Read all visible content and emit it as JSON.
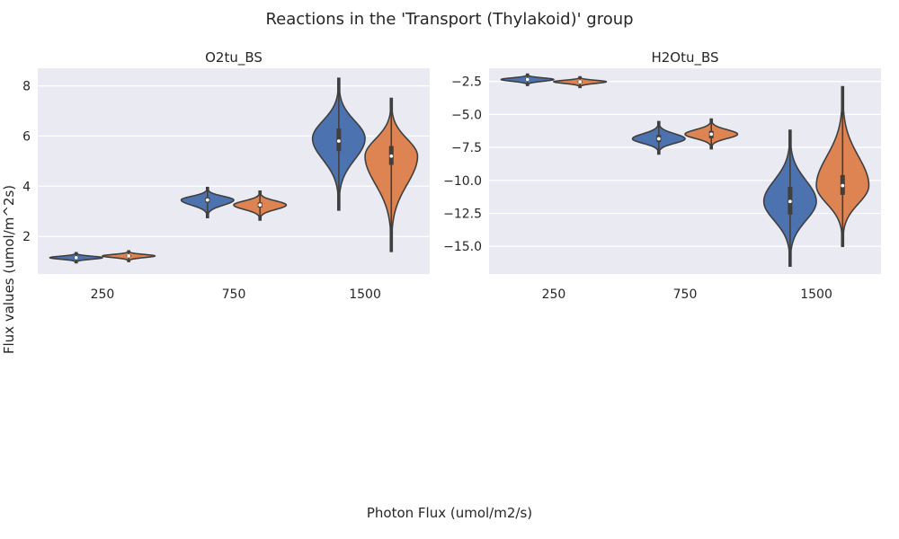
{
  "title": "Reactions in the 'Transport (Thylakoid)' group",
  "xlabel": "Photon Flux (umol/m2/s)",
  "ylabel": "Flux values (umol/m^2s)",
  "colors": {
    "series1": "#4c72b0",
    "series2": "#dd8452",
    "panel_bg": "#eaeaf2",
    "grid": "#ffffff",
    "outline": "#3f3f3f"
  },
  "chart_data": [
    {
      "type": "violin",
      "title": "O2tu_BS",
      "categories": [
        "250",
        "750",
        "1500"
      ],
      "yticks": [
        2,
        4,
        6,
        8
      ],
      "ytick_labels": [
        "2",
        "4",
        "6",
        "8"
      ],
      "ylim": [
        0.5,
        8.7
      ],
      "series": [
        {
          "color": "#4c72b0",
          "stats": [
            {
              "min": 0.95,
              "q1": 1.1,
              "median": 1.15,
              "q3": 1.2,
              "max": 1.35,
              "mode": 1.15
            },
            {
              "min": 2.75,
              "q1": 3.35,
              "median": 3.45,
              "q3": 3.55,
              "max": 3.95,
              "mode": 3.45
            },
            {
              "min": 3.05,
              "q1": 5.4,
              "median": 5.8,
              "q3": 6.3,
              "max": 8.3,
              "mode": 5.9
            }
          ]
        },
        {
          "color": "#dd8452",
          "stats": [
            {
              "min": 1.0,
              "q1": 1.17,
              "median": 1.22,
              "q3": 1.27,
              "max": 1.42,
              "mode": 1.22
            },
            {
              "min": 2.65,
              "q1": 3.15,
              "median": 3.25,
              "q3": 3.35,
              "max": 3.8,
              "mode": 3.25
            },
            {
              "min": 1.4,
              "q1": 4.85,
              "median": 5.2,
              "q3": 5.6,
              "max": 7.5,
              "mode": 5.2
            }
          ]
        }
      ]
    },
    {
      "type": "violin",
      "title": "H2Otu_BS",
      "categories": [
        "250",
        "750",
        "1500"
      ],
      "yticks": [
        -2.5,
        -5.0,
        -7.5,
        -10.0,
        -12.5,
        -15.0
      ],
      "ytick_labels": [
        "−2.5",
        "−5.0",
        "−7.5",
        "−10.0",
        "−12.5",
        "−15.0"
      ],
      "ylim": [
        -17.1,
        -1.5
      ],
      "series": [
        {
          "color": "#4c72b0",
          "stats": [
            {
              "min": -2.8,
              "q1": -2.45,
              "median": -2.35,
              "q3": -2.25,
              "max": -1.95,
              "mode": -2.35
            },
            {
              "min": -8.0,
              "q1": -7.1,
              "median": -6.85,
              "q3": -6.55,
              "max": -5.55,
              "mode": -6.85
            },
            {
              "min": -16.5,
              "q1": -12.6,
              "median": -11.6,
              "q3": -10.5,
              "max": -6.2,
              "mode": -11.6
            }
          ]
        },
        {
          "color": "#dd8452",
          "stats": [
            {
              "min": -2.95,
              "q1": -2.62,
              "median": -2.52,
              "q3": -2.42,
              "max": -2.15,
              "mode": -2.52
            },
            {
              "min": -7.6,
              "q1": -6.8,
              "median": -6.5,
              "q3": -6.25,
              "max": -5.35,
              "mode": -6.5
            },
            {
              "min": -15.0,
              "q1": -11.1,
              "median": -10.4,
              "q3": -9.6,
              "max": -2.9,
              "mode": -10.4
            }
          ]
        }
      ]
    }
  ]
}
